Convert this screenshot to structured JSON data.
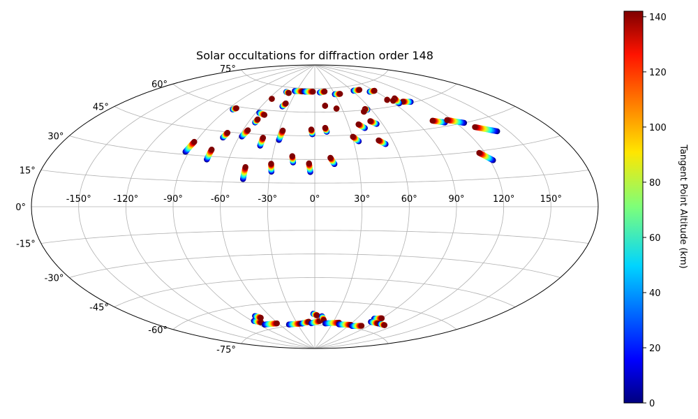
{
  "chart_data": {
    "type": "scatter",
    "projection": "aitoff",
    "title": "Solar occultations for diffraction order 148",
    "xlabel": "",
    "ylabel": "",
    "lon_ticks": [
      -150,
      -120,
      -90,
      -60,
      -30,
      0,
      30,
      60,
      90,
      120,
      150
    ],
    "lon_tick_labels": [
      "-150°",
      "-120°",
      "-90°",
      "-60°",
      "-30°",
      "0°",
      "30°",
      "60°",
      "90°",
      "120°",
      "150°"
    ],
    "lat_ticks": [
      75,
      60,
      45,
      30,
      15,
      0,
      -15,
      -30,
      -45,
      -60,
      -75
    ],
    "lat_tick_labels": [
      "75°",
      "60°",
      "45°",
      "30°",
      "15°",
      "0°",
      "-15°",
      "-30°",
      "-45°",
      "-60°",
      "-75°"
    ],
    "colorbar": {
      "label": "Tangent Point Altitude (km)",
      "min": 0,
      "max": 142,
      "ticks": [
        0,
        20,
        40,
        60,
        80,
        100,
        120,
        140
      ],
      "tick_labels": [
        "0",
        "20",
        "40",
        "60",
        "80",
        "100",
        "120",
        "140"
      ],
      "colormap": "jet"
    },
    "occultations": [
      {
        "lon": -92.5,
        "lat": 31.5,
        "lon_end": -91.0,
        "lat_end": 37.5
      },
      {
        "lon": -75.0,
        "lat": 28.0,
        "lon_end": -75.0,
        "lat_end": 34.0
      },
      {
        "lon": -72.0,
        "lat": 41.5,
        "lon_end": -71.0,
        "lat_end": 44.5
      },
      {
        "lon": -85.0,
        "lat": 58.0,
        "lon_end": -83.0,
        "lat_end": 59.0
      },
      {
        "lon": -56.0,
        "lat": 67.0,
        "lon_end": -56.0,
        "lat_end": 67.0
      },
      {
        "lon": -58.0,
        "lat": 43.0,
        "lon_end": -56.0,
        "lat_end": 47.0
      },
      {
        "lon": -54.0,
        "lat": 52.0,
        "lon_end": -53.5,
        "lat_end": 54.0
      },
      {
        "lon": -56.5,
        "lat": 58.0,
        "lon_end": -50.0,
        "lat_end": 57.0
      },
      {
        "lon": -37.0,
        "lat": 63.0,
        "lon_end": -35.0,
        "lat_end": 65.0
      },
      {
        "lon": -47.0,
        "lat": 17.0,
        "lon_end": -47.0,
        "lat_end": 24.5
      },
      {
        "lon": -41.0,
        "lat": 38.0,
        "lon_end": -41.0,
        "lat_end": 43.0
      },
      {
        "lon": -29.0,
        "lat": 22.0,
        "lon_end": -30.0,
        "lat_end": 27.0
      },
      {
        "lon": -28.0,
        "lat": 42.0,
        "lon_end": -27.0,
        "lat_end": 48.0
      },
      {
        "lon": -15.0,
        "lat": 28.0,
        "lon_end": -16.0,
        "lat_end": 32.0
      },
      {
        "lon": -3.0,
        "lat": 22.0,
        "lon_end": -4.0,
        "lat_end": 27.5
      },
      {
        "lon": -2.0,
        "lat": 46.0,
        "lon_end": -3.0,
        "lat_end": 49.0
      },
      {
        "lon": 10.0,
        "lat": 47.5,
        "lon_end": 9.0,
        "lat_end": 50.0
      },
      {
        "lon": 13.5,
        "lat": 27.0,
        "lon_end": 11.0,
        "lat_end": 31.0
      },
      {
        "lon": 34.0,
        "lat": 41.0,
        "lon_end": 30.5,
        "lat_end": 44.0
      },
      {
        "lon": 43.0,
        "lat": 49.0,
        "lon_end": 39.0,
        "lat_end": 51.5
      },
      {
        "lon": 53.5,
        "lat": 38.5,
        "lon_end": 49.5,
        "lat_end": 41.0
      },
      {
        "lon": 55.0,
        "lat": 51.0,
        "lon_end": 51.0,
        "lat_end": 53.0
      },
      {
        "lon": 56.0,
        "lat": 60.0,
        "lon_end": 54.0,
        "lat_end": 60.5
      },
      {
        "lon": 12.0,
        "lat": 64.0,
        "lon_end": 12.0,
        "lat_end": 64.0
      },
      {
        "lon": 24.0,
        "lat": 62.0,
        "lon_end": 24.0,
        "lat_end": 62.0
      },
      {
        "lon": 51.0,
        "lat": 59.0,
        "lon_end": 51.0,
        "lat_end": 59.0
      },
      {
        "lon": 112.0,
        "lat": 47.0,
        "lon_end": 104.0,
        "lat_end": 49.0
      },
      {
        "lon": 126.0,
        "lat": 45.0,
        "lon_end": 116.0,
        "lat_end": 48.0
      },
      {
        "lon": 142.0,
        "lat": 38.0,
        "lon_end": 130.0,
        "lat_end": 42.0
      },
      {
        "lon": 122.0,
        "lat": 24.5,
        "lon_end": 116.0,
        "lat_end": 29.0
      },
      {
        "lon": 108.0,
        "lat": 60.5,
        "lon_end": 101.0,
        "lat_end": 61.5
      },
      {
        "lon": 95.0,
        "lat": 61.0,
        "lon_end": 98.0,
        "lat_end": 64.0
      },
      {
        "lon": 93.0,
        "lat": 63.0,
        "lon_end": 93.0,
        "lat_end": 63.0
      },
      {
        "lon": 88.0,
        "lat": 64.0,
        "lon_end": 88.0,
        "lat_end": 64.0
      },
      {
        "lon": -33.0,
        "lat": 73.0,
        "lon_end": -20.0,
        "lat_end": 73.0
      },
      {
        "lon": -17.0,
        "lat": 73.0,
        "lon_end": -3.0,
        "lat_end": 73.0
      },
      {
        "lon": 8.0,
        "lat": 72.5,
        "lon_end": 16.0,
        "lat_end": 73.0
      },
      {
        "lon": 30.0,
        "lat": 71.0,
        "lon_end": 38.0,
        "lat_end": 71.0
      },
      {
        "lon": 62.0,
        "lat": 72.0,
        "lon_end": 72.0,
        "lat_end": 72.0
      },
      {
        "lon": 82.0,
        "lat": 70.0,
        "lon_end": 90.0,
        "lat_end": 70.0
      },
      {
        "lon": -45.0,
        "lat": 72.0,
        "lon_end": -40.0,
        "lat_end": 71.5
      },
      {
        "lon": -88.0,
        "lat": -69.0,
        "lon_end": -82.0,
        "lat_end": -70.5
      },
      {
        "lon": -78.0,
        "lat": -66.5,
        "lon_end": -74.0,
        "lat_end": -68.0
      },
      {
        "lon": -82.0,
        "lat": -72.0,
        "lon_end": -62.0,
        "lat_end": -72.5
      },
      {
        "lon": -45.0,
        "lat": -74.0,
        "lon_end": -25.0,
        "lat_end": -74.0
      },
      {
        "lon": -22.0,
        "lat": -74.0,
        "lon_end": -10.0,
        "lat_end": -73.0
      },
      {
        "lon": -6.0,
        "lat": -74.0,
        "lon_end": 8.0,
        "lat_end": -72.5
      },
      {
        "lon": -2.0,
        "lat": -68.0,
        "lon_end": 3.0,
        "lat_end": -69.0
      },
      {
        "lon": 10.0,
        "lat": -69.5,
        "lon_end": 14.0,
        "lat_end": -72.0
      },
      {
        "lon": 18.0,
        "lat": -74.0,
        "lon_end": 40.0,
        "lat_end": -73.0
      },
      {
        "lon": 42.0,
        "lat": -74.0,
        "lon_end": 62.0,
        "lat_end": -73.5
      },
      {
        "lon": 66.0,
        "lat": -74.0,
        "lon_end": 80.0,
        "lat_end": -73.0
      },
      {
        "lon": 82.0,
        "lat": -68.0,
        "lon_end": 90.0,
        "lat_end": -67.0
      },
      {
        "lon": 84.0,
        "lat": -70.0,
        "lon_end": 96.0,
        "lat_end": -70.0
      },
      {
        "lon": 100.0,
        "lat": -70.0,
        "lon_end": 108.0,
        "lat_end": -70.0
      }
    ]
  }
}
